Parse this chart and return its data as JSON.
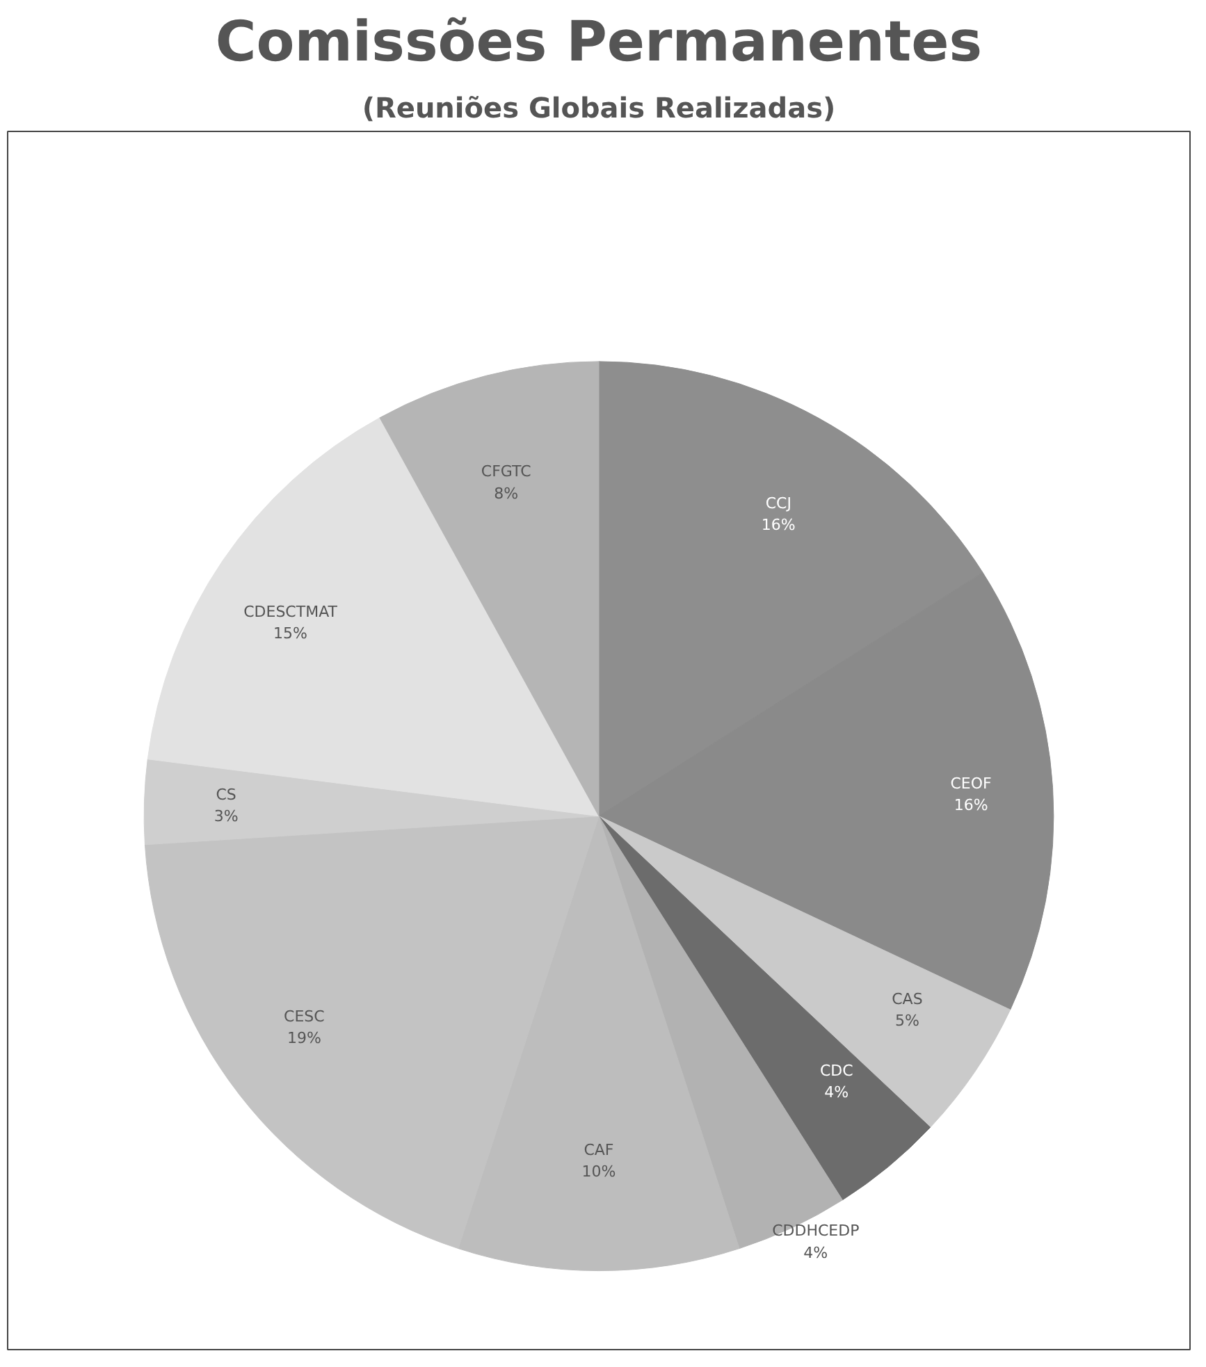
{
  "chart_data": {
    "type": "pie",
    "title": "Comissões Permanentes",
    "subtitle": "(Reuniões Globais Realizadas)",
    "categories": [
      "CCJ",
      "CEOF",
      "CAS",
      "CDC",
      "CDDHCEDP",
      "CAF",
      "CESC",
      "CS",
      "CDESCTMAT",
      "CFGTC"
    ],
    "values": [
      16,
      16,
      5,
      4,
      4,
      10,
      19,
      3,
      15,
      8
    ],
    "value_labels": [
      "16%",
      "16%",
      "5%",
      "4%",
      "4%",
      "10%",
      "19%",
      "3%",
      "15%",
      "8%"
    ],
    "colors": [
      "#8e8e8e",
      "#8a8a8a",
      "#cacaca",
      "#6c6c6c",
      "#b2b2b2",
      "#bdbdbd",
      "#c3c3c3",
      "#cfcfcf",
      "#e2e2e2",
      "#b5b5b5"
    ]
  }
}
